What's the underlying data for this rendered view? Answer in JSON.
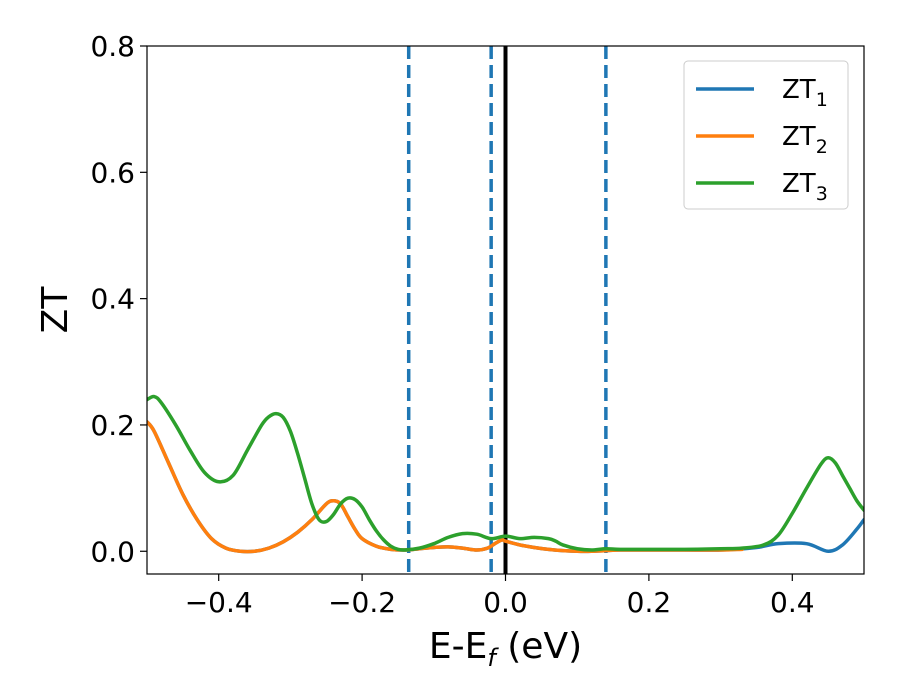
{
  "chart_data": {
    "type": "line",
    "title": "",
    "xlabel": "E-E",
    "xlabel_sub": "f",
    "xlabel_unit": " (eV)",
    "ylabel": "ZT",
    "xlim": [
      -0.5,
      0.5
    ],
    "ylim": [
      -0.036,
      0.8
    ],
    "xticks": [
      -0.4,
      -0.2,
      0.0,
      0.2,
      0.4
    ],
    "xtick_labels": [
      "−0.4",
      "−0.2",
      "0.0",
      "0.2",
      "0.4"
    ],
    "yticks": [
      0.0,
      0.2,
      0.4,
      0.6,
      0.8
    ],
    "ytick_labels": [
      "0.0",
      "0.2",
      "0.4",
      "0.6",
      "0.8"
    ],
    "grid": false,
    "legend_position": "top-right",
    "vlines": [
      {
        "x": -0.135,
        "style": "dashed",
        "color": "#1f77b4"
      },
      {
        "x": -0.02,
        "style": "dashed",
        "color": "#1f77b4"
      },
      {
        "x": 0.0,
        "style": "solid",
        "color": "#000000"
      },
      {
        "x": 0.14,
        "style": "dashed",
        "color": "#1f77b4"
      }
    ],
    "series": [
      {
        "name": "ZT",
        "sub": "1",
        "color": "#1f77b4",
        "x": [
          -0.5,
          -0.49,
          -0.47,
          -0.45,
          -0.43,
          -0.41,
          -0.39,
          -0.37,
          -0.35,
          -0.33,
          -0.31,
          -0.29,
          -0.27,
          -0.25,
          -0.24,
          -0.23,
          -0.22,
          -0.21,
          -0.2,
          -0.18,
          -0.16,
          -0.14,
          -0.12,
          -0.1,
          -0.08,
          -0.06,
          -0.04,
          -0.025,
          -0.015,
          -0.005,
          0.0,
          0.02,
          0.04,
          0.06,
          0.08,
          0.1,
          0.12,
          0.14,
          0.16,
          0.2,
          0.25,
          0.3,
          0.35,
          0.38,
          0.42,
          0.45,
          0.47,
          0.49,
          0.5
        ],
        "y": [
          0.205,
          0.19,
          0.14,
          0.09,
          0.05,
          0.02,
          0.005,
          0.0,
          0.0,
          0.005,
          0.015,
          0.03,
          0.05,
          0.075,
          0.08,
          0.075,
          0.055,
          0.035,
          0.02,
          0.008,
          0.003,
          0.002,
          0.004,
          0.006,
          0.007,
          0.005,
          0.002,
          0.005,
          0.012,
          0.018,
          0.016,
          0.01,
          0.006,
          0.003,
          0.001,
          0.0,
          0.0,
          0.001,
          0.002,
          0.002,
          0.002,
          0.002,
          0.006,
          0.012,
          0.012,
          0.0,
          0.01,
          0.035,
          0.05
        ]
      },
      {
        "name": "ZT",
        "sub": "2",
        "color": "#ff7f0e",
        "x": [
          -0.5,
          -0.49,
          -0.47,
          -0.45,
          -0.43,
          -0.41,
          -0.39,
          -0.37,
          -0.35,
          -0.33,
          -0.31,
          -0.29,
          -0.27,
          -0.25,
          -0.24,
          -0.23,
          -0.22,
          -0.21,
          -0.2,
          -0.18,
          -0.16,
          -0.14,
          -0.12,
          -0.1,
          -0.08,
          -0.06,
          -0.04,
          -0.025,
          -0.015,
          -0.005,
          0.0,
          0.02,
          0.04,
          0.06,
          0.08,
          0.1,
          0.12,
          0.14,
          0.16,
          0.2,
          0.25,
          0.3,
          0.33
        ],
        "y": [
          0.205,
          0.19,
          0.14,
          0.09,
          0.05,
          0.02,
          0.005,
          0.0,
          0.0,
          0.005,
          0.015,
          0.03,
          0.05,
          0.075,
          0.08,
          0.075,
          0.055,
          0.035,
          0.02,
          0.008,
          0.003,
          0.002,
          0.004,
          0.006,
          0.007,
          0.005,
          0.002,
          0.005,
          0.012,
          0.018,
          0.016,
          0.01,
          0.006,
          0.003,
          0.001,
          0.0,
          0.0,
          0.001,
          0.002,
          0.002,
          0.002,
          0.002,
          0.003
        ]
      },
      {
        "name": "ZT",
        "sub": "3",
        "color": "#2ca02c",
        "x": [
          -0.5,
          -0.49,
          -0.48,
          -0.46,
          -0.44,
          -0.42,
          -0.4,
          -0.38,
          -0.36,
          -0.34,
          -0.33,
          -0.32,
          -0.31,
          -0.3,
          -0.29,
          -0.28,
          -0.27,
          -0.26,
          -0.25,
          -0.24,
          -0.23,
          -0.22,
          -0.21,
          -0.2,
          -0.19,
          -0.18,
          -0.17,
          -0.16,
          -0.15,
          -0.14,
          -0.12,
          -0.1,
          -0.08,
          -0.06,
          -0.04,
          -0.02,
          0.0,
          0.02,
          0.04,
          0.06,
          0.07,
          0.08,
          0.1,
          0.12,
          0.14,
          0.16,
          0.2,
          0.25,
          0.3,
          0.33,
          0.36,
          0.38,
          0.4,
          0.42,
          0.44,
          0.45,
          0.46,
          0.47,
          0.48,
          0.49,
          0.5
        ],
        "y": [
          0.24,
          0.245,
          0.235,
          0.2,
          0.16,
          0.125,
          0.11,
          0.12,
          0.16,
          0.2,
          0.213,
          0.218,
          0.212,
          0.19,
          0.155,
          0.115,
          0.075,
          0.05,
          0.047,
          0.058,
          0.075,
          0.084,
          0.082,
          0.07,
          0.05,
          0.032,
          0.018,
          0.008,
          0.003,
          0.002,
          0.005,
          0.012,
          0.022,
          0.028,
          0.027,
          0.02,
          0.024,
          0.02,
          0.022,
          0.02,
          0.016,
          0.01,
          0.004,
          0.002,
          0.004,
          0.003,
          0.003,
          0.003,
          0.004,
          0.005,
          0.01,
          0.025,
          0.06,
          0.1,
          0.138,
          0.148,
          0.14,
          0.12,
          0.1,
          0.08,
          0.065
        ]
      }
    ]
  }
}
